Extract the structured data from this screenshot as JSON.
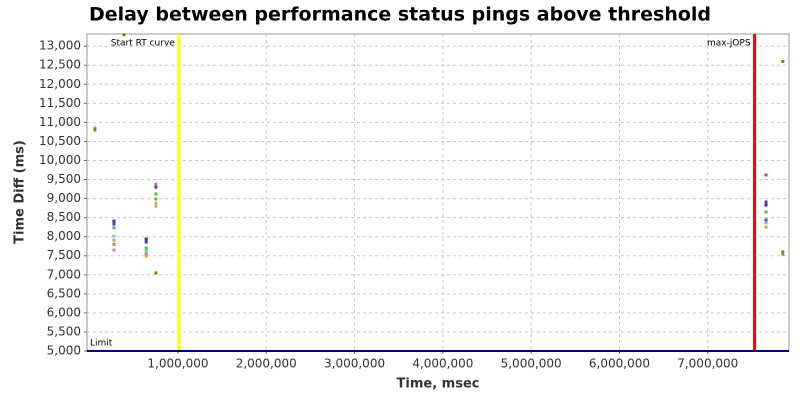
{
  "chart_data": {
    "type": "scatter",
    "title": "Delay between performance status pings above threshold",
    "x_label": "Time, msec",
    "y_label": "Time Diff (ms)",
    "xlim": [
      -30000,
      7920000
    ],
    "ylim": [
      5000,
      13320
    ],
    "xticks": [
      {
        "value": 1000000,
        "label": "1,000,000"
      },
      {
        "value": 2000000,
        "label": "2,000,000"
      },
      {
        "value": 3000000,
        "label": "3,000,000"
      },
      {
        "value": 4000000,
        "label": "4,000,000"
      },
      {
        "value": 5000000,
        "label": "5,000,000"
      },
      {
        "value": 6000000,
        "label": "6,000,000"
      },
      {
        "value": 7000000,
        "label": "7,000,000"
      }
    ],
    "yticks": [
      {
        "value": 5000,
        "label": "5,000"
      },
      {
        "value": 5500,
        "label": "5,500"
      },
      {
        "value": 6000,
        "label": "6,000"
      },
      {
        "value": 6500,
        "label": "6,500"
      },
      {
        "value": 7000,
        "label": "7,000"
      },
      {
        "value": 7500,
        "label": "7,500"
      },
      {
        "value": 8000,
        "label": "8,000"
      },
      {
        "value": 8500,
        "label": "8,500"
      },
      {
        "value": 9000,
        "label": "9,000"
      },
      {
        "value": 9500,
        "label": "9,500"
      },
      {
        "value": 10000,
        "label": "10,000"
      },
      {
        "value": 10500,
        "label": "10,500"
      },
      {
        "value": 11000,
        "label": "11,000"
      },
      {
        "value": 11500,
        "label": "11,500"
      },
      {
        "value": 12000,
        "label": "12,000"
      },
      {
        "value": 12500,
        "label": "12,500"
      },
      {
        "value": 13000,
        "label": "13,000"
      }
    ],
    "grid": true,
    "x": [
      60000,
      60000,
      390000,
      275000,
      275000,
      275000,
      275000,
      275000,
      275000,
      275000,
      640000,
      640000,
      640000,
      640000,
      640000,
      640000,
      750000,
      750000,
      750000,
      750000,
      750000,
      750000,
      750000,
      7660000,
      7660000,
      7660000,
      7660000,
      7660000,
      7660000,
      7660000,
      7850000,
      7850000,
      7850000
    ],
    "y": [
      10850,
      10800,
      13300,
      8410,
      8330,
      8230,
      8020,
      7910,
      7800,
      7650,
      7940,
      7860,
      7700,
      7620,
      7540,
      7490,
      9380,
      9300,
      9120,
      8990,
      8880,
      8800,
      7050,
      9620,
      8910,
      8830,
      8650,
      8440,
      8360,
      8250,
      12600,
      7600,
      7540
    ],
    "colors": [
      "#e06080",
      "#808000",
      "#808000",
      "#602080",
      "#4040c0",
      "#40c040",
      "#60d0d0",
      "#e0a040",
      "#e06080",
      "#e080a0",
      "#602080",
      "#4040c0",
      "#40c040",
      "#60d0d0",
      "#e06080",
      "#e0a040",
      "#e06080",
      "#4040c0",
      "#40c040",
      "#a0a000",
      "#60d0d0",
      "#e0a040",
      "#808000",
      "#e04040",
      "#4040c0",
      "#602080",
      "#40c040",
      "#8040a0",
      "#60d0d0",
      "#e0a040",
      "#808000",
      "#808000",
      "#40c040"
    ],
    "vlines": [
      {
        "x": 1010000,
        "label": "Start RT curve",
        "color": "#ffff00"
      },
      {
        "x": 7530000,
        "label": "max-jOPS",
        "color": "#ff0000"
      }
    ],
    "hlines": [
      {
        "y": 5000,
        "label": "Limit",
        "color": "#000080"
      }
    ]
  }
}
